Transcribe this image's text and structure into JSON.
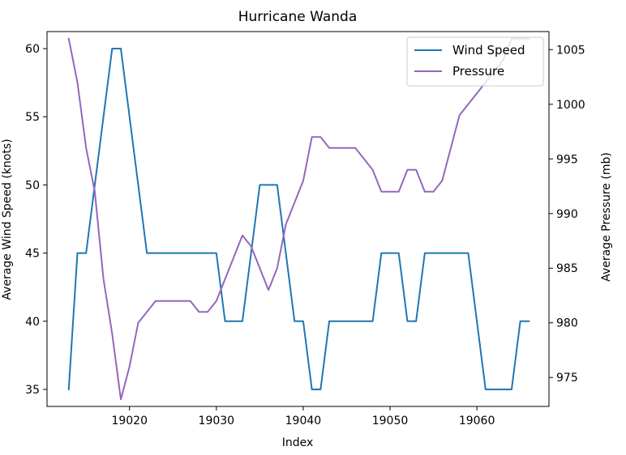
{
  "chart_data": {
    "type": "line",
    "title": "Hurricane Wanda",
    "xlabel": "Index",
    "ylabel": "Average Wind Speed (knots)",
    "y2label": "Average Pressure (mb)",
    "xlim": [
      19010.5,
      19068.3
    ],
    "ylim": [
      33.75,
      61.25
    ],
    "y2lim": [
      972.35,
      1006.65
    ],
    "x_ticks": [
      19020,
      19030,
      19040,
      19050,
      19060
    ],
    "y_ticks": [
      35,
      40,
      45,
      50,
      55,
      60
    ],
    "y2_ticks": [
      975,
      980,
      985,
      990,
      995,
      1000,
      1005
    ],
    "legend": {
      "placement": "upper-right"
    },
    "series": [
      {
        "name": "Wind Speed",
        "axis": "left",
        "color": "#1f77b4",
        "x": [
          19013,
          19014,
          19015,
          19016,
          19017,
          19018,
          19019,
          19020,
          19021,
          19022,
          19023,
          19024,
          19025,
          19026,
          19027,
          19028,
          19029,
          19030,
          19031,
          19032,
          19033,
          19034,
          19035,
          19036,
          19037,
          19038,
          19039,
          19040,
          19041,
          19042,
          19043,
          19044,
          19045,
          19046,
          19047,
          19048,
          19049,
          19050,
          19051,
          19052,
          19053,
          19054,
          19055,
          19056,
          19057,
          19058,
          19059,
          19060,
          19061,
          19062,
          19063,
          19064,
          19065,
          19066
        ],
        "values": [
          35,
          45,
          45,
          50,
          55,
          60,
          60,
          55,
          50,
          45,
          45,
          45,
          45,
          45,
          45,
          45,
          45,
          45,
          40,
          40,
          40,
          45,
          50,
          50,
          50,
          45,
          40,
          40,
          35,
          35,
          40,
          40,
          40,
          40,
          40,
          40,
          45,
          45,
          45,
          40,
          40,
          45,
          45,
          45,
          45,
          45,
          45,
          40,
          35,
          35,
          35,
          35,
          40,
          40
        ]
      },
      {
        "name": "Pressure",
        "axis": "right",
        "color": "#9467bd",
        "x": [
          19013,
          19014,
          19015,
          19016,
          19017,
          19018,
          19019,
          19020,
          19021,
          19022,
          19023,
          19024,
          19025,
          19026,
          19027,
          19028,
          19029,
          19030,
          19031,
          19032,
          19033,
          19034,
          19035,
          19036,
          19037,
          19038,
          19039,
          19040,
          19041,
          19042,
          19043,
          19044,
          19045,
          19046,
          19047,
          19048,
          19049,
          19050,
          19051,
          19052,
          19053,
          19054,
          19055,
          19056,
          19057,
          19058,
          19059,
          19060,
          19061,
          19062,
          19063,
          19064,
          19065,
          19066
        ],
        "values": [
          1006,
          1002,
          996,
          992,
          984,
          979,
          973,
          976,
          980,
          981,
          982,
          982,
          982,
          982,
          982,
          981,
          981,
          982,
          984,
          986,
          988,
          987,
          985,
          983,
          985,
          989,
          991,
          993,
          997,
          997,
          996,
          996,
          996,
          996,
          995,
          994,
          992,
          992,
          992,
          994,
          994,
          992,
          992,
          993,
          996,
          999,
          1000,
          1001,
          1002,
          1003,
          1004,
          1006,
          1006,
          1006
        ]
      }
    ]
  }
}
